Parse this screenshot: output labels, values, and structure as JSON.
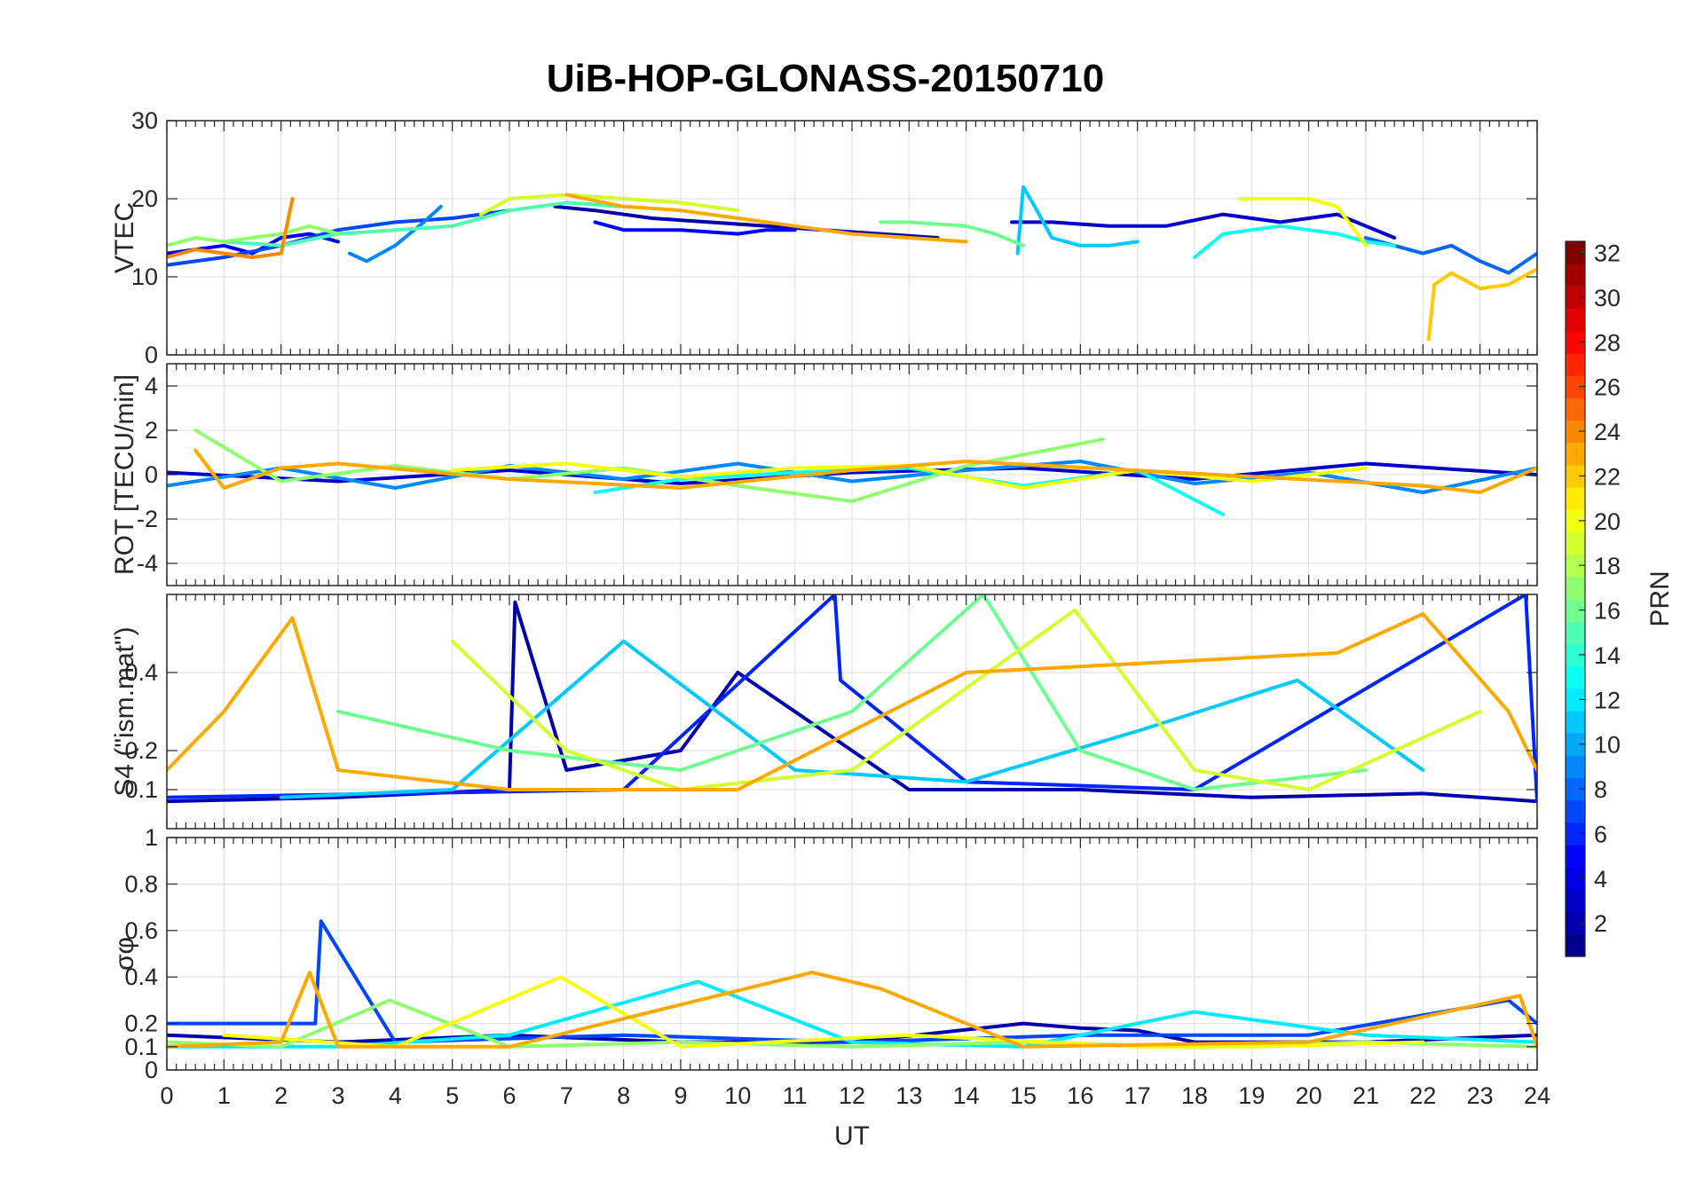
{
  "colors": {
    "axis": "#262626",
    "grid": "#e3e3e3",
    "colormap": [
      "#00008f",
      "#0000ff",
      "#0080ff",
      "#00ffff",
      "#80ff80",
      "#ffff00",
      "#ff8000",
      "#ff0000",
      "#800000"
    ]
  },
  "chart_data": [
    {
      "type": "line",
      "panel": "vtec",
      "title": "UiB-HOP-GLONASS-20150710",
      "ylabel": "VTEC",
      "xlabel": "",
      "xlim": [
        0,
        24
      ],
      "ylim": [
        0,
        30
      ],
      "yticks": [
        "0",
        "10",
        "20",
        "30"
      ],
      "grid": true,
      "series": [
        {
          "prn": 2,
          "x": [
            6.8,
            7.5,
            8.5,
            9.5,
            10.5,
            11.5,
            12.5,
            13.5
          ],
          "y": [
            19,
            18.5,
            17.5,
            17,
            16.5,
            16,
            15.5,
            15
          ]
        },
        {
          "prn": 3,
          "x": [
            14.8,
            15.5,
            16.5,
            17.5,
            18.5,
            19.5,
            20.5,
            21.5
          ],
          "y": [
            17,
            17,
            16.5,
            16.5,
            18,
            17,
            18,
            15
          ]
        },
        {
          "prn": 4,
          "x": [
            0,
            0.5,
            1,
            1.5,
            2,
            2.5,
            3
          ],
          "y": [
            13,
            13.5,
            14,
            13,
            15,
            15.5,
            14.5
          ]
        },
        {
          "prn": 5,
          "x": [
            7.5,
            8,
            9,
            10,
            10.5,
            11
          ],
          "y": [
            17,
            16,
            16,
            15.5,
            16,
            16
          ]
        },
        {
          "prn": 7,
          "x": [
            0,
            1,
            2,
            3,
            4,
            5,
            6
          ],
          "y": [
            11.5,
            12.5,
            14,
            16,
            17,
            17.5,
            18.5
          ]
        },
        {
          "prn": 8,
          "x": [
            21,
            21.5,
            22,
            22.5,
            23,
            23.5,
            24
          ],
          "y": [
            15,
            14,
            13,
            14,
            12,
            10.5,
            13
          ]
        },
        {
          "prn": 9,
          "x": [
            3.2,
            3.5,
            4,
            4.5,
            4.8
          ],
          "y": [
            13,
            12,
            14,
            17,
            19
          ]
        },
        {
          "prn": 11,
          "x": [
            14.9,
            15,
            15.2,
            15.5,
            16,
            16.5,
            17
          ],
          "y": [
            13,
            21.5,
            19,
            15,
            14,
            14,
            14.5
          ]
        },
        {
          "prn": 13,
          "x": [
            18,
            18.5,
            19,
            19.5,
            20,
            20.5,
            21,
            21.5
          ],
          "y": [
            12.5,
            15.5,
            16,
            16.5,
            16,
            15.5,
            14.5,
            14
          ]
        },
        {
          "prn": 15,
          "x": [
            1,
            2,
            3,
            4,
            5,
            6,
            7,
            8
          ],
          "y": [
            14.5,
            14,
            15.5,
            16,
            16.5,
            18.5,
            19.5,
            19
          ]
        },
        {
          "prn": 16,
          "x": [
            12.5,
            13,
            14,
            14.5,
            15
          ],
          "y": [
            17,
            17,
            16.5,
            15.5,
            14
          ]
        },
        {
          "prn": 17,
          "x": [
            0,
            0.5,
            1,
            2,
            2.5,
            3
          ],
          "y": [
            14,
            15,
            14.5,
            15.5,
            16.5,
            15.5
          ]
        },
        {
          "prn": 19,
          "x": [
            5.5,
            6,
            7,
            8,
            9,
            10
          ],
          "y": [
            18,
            20,
            20.5,
            20,
            19.5,
            18.5
          ]
        },
        {
          "prn": 20,
          "x": [
            18.8,
            19,
            19.5,
            20,
            20.5,
            21
          ],
          "y": [
            20,
            20,
            20,
            20,
            19,
            14
          ]
        },
        {
          "prn": 22,
          "x": [
            22.1,
            22.2,
            22.5,
            23,
            23.5,
            24
          ],
          "y": [
            2,
            9,
            10.5,
            8.5,
            9,
            11
          ]
        },
        {
          "prn": 23,
          "x": [
            7,
            8,
            9,
            10,
            11,
            12,
            13,
            14
          ],
          "y": [
            20.5,
            19,
            18.5,
            17.5,
            16.5,
            15.5,
            15,
            14.5
          ]
        },
        {
          "prn": 24,
          "x": [
            0,
            0.5,
            1,
            1.5,
            2,
            2.2
          ],
          "y": [
            12.5,
            13.5,
            13,
            12.5,
            13,
            20
          ]
        }
      ]
    },
    {
      "type": "line",
      "panel": "rot",
      "ylabel": "ROT [TECU/min]",
      "xlim": [
        0,
        24
      ],
      "ylim": [
        -5,
        5
      ],
      "yticks": [
        "-4",
        "-2",
        "0",
        "2",
        "4"
      ],
      "grid": true,
      "series": [
        {
          "prn": 3,
          "x": [
            0,
            3,
            6,
            9,
            12,
            15,
            18,
            21,
            24
          ],
          "y": [
            0.1,
            -0.3,
            0.2,
            -0.4,
            0.1,
            0.3,
            -0.2,
            0.5,
            0
          ]
        },
        {
          "prn": 9,
          "x": [
            0,
            2,
            4,
            6,
            8,
            10,
            12,
            14,
            16,
            18,
            20,
            22,
            24
          ],
          "y": [
            -0.5,
            0.3,
            -0.6,
            0.4,
            -0.2,
            0.5,
            -0.3,
            0.2,
            0.6,
            -0.4,
            0.1,
            -0.8,
            0.3
          ]
        },
        {
          "prn": 13,
          "x": [
            7.5,
            9,
            11,
            13,
            15,
            17,
            18.5
          ],
          "y": [
            -0.8,
            -0.2,
            0.1,
            0.3,
            -0.5,
            0.2,
            -1.8
          ]
        },
        {
          "prn": 17,
          "x": [
            0.5,
            2,
            4,
            6,
            8,
            10,
            12,
            14,
            16.4
          ],
          "y": [
            2,
            -0.3,
            0.4,
            -0.2,
            0.3,
            -0.5,
            -1.2,
            0.4,
            1.6
          ]
        },
        {
          "prn": 20,
          "x": [
            5,
            7,
            9,
            11,
            13,
            15,
            17,
            19,
            21
          ],
          "y": [
            0.2,
            0.5,
            -0.1,
            0.3,
            0.4,
            -0.6,
            0.2,
            -0.3,
            0.3
          ]
        },
        {
          "prn": 23,
          "x": [
            0.5,
            1,
            2,
            3,
            6,
            9,
            12,
            14,
            22,
            23,
            24
          ],
          "y": [
            1.1,
            -0.6,
            0.3,
            0.5,
            -0.2,
            -0.6,
            0.2,
            0.6,
            -0.5,
            -0.8,
            0.3
          ]
        }
      ]
    },
    {
      "type": "line",
      "panel": "s4",
      "ylabel": "S4 (\"ism.mat\")",
      "xlim": [
        0,
        24
      ],
      "ylim": [
        0,
        0.6
      ],
      "yticks": [
        "0.1",
        "0.2",
        "0.4"
      ],
      "grid": true,
      "series": [
        {
          "prn": 2,
          "x": [
            0,
            3,
            6,
            6.1,
            7,
            9,
            10,
            13,
            16,
            19,
            22,
            24
          ],
          "y": [
            0.07,
            0.08,
            0.1,
            0.58,
            0.15,
            0.2,
            0.4,
            0.1,
            0.1,
            0.08,
            0.09,
            0.07
          ]
        },
        {
          "prn": 6,
          "x": [
            0,
            4,
            8,
            11.7,
            11.8,
            14,
            18,
            23.8,
            24
          ],
          "y": [
            0.08,
            0.09,
            0.1,
            0.6,
            0.38,
            0.12,
            0.1,
            0.6,
            0.07
          ]
        },
        {
          "prn": 11,
          "x": [
            2,
            5,
            8,
            11,
            14,
            17,
            19.8,
            22
          ],
          "y": [
            0.08,
            0.1,
            0.48,
            0.15,
            0.12,
            0.25,
            0.38,
            0.15
          ]
        },
        {
          "prn": 16,
          "x": [
            3,
            6,
            9,
            12,
            14.3,
            16,
            18,
            21
          ],
          "y": [
            0.3,
            0.2,
            0.15,
            0.3,
            0.6,
            0.2,
            0.1,
            0.15
          ]
        },
        {
          "prn": 19,
          "x": [
            5,
            7,
            9,
            12,
            15.9,
            18,
            20,
            23
          ],
          "y": [
            0.48,
            0.2,
            0.1,
            0.15,
            0.56,
            0.15,
            0.1,
            0.3
          ]
        },
        {
          "prn": 23,
          "x": [
            0,
            1,
            2.2,
            3,
            6,
            10,
            14,
            20.5,
            22,
            23.5,
            24
          ],
          "y": [
            0.15,
            0.3,
            0.54,
            0.15,
            0.1,
            0.1,
            0.4,
            0.45,
            0.55,
            0.3,
            0.15
          ]
        }
      ]
    },
    {
      "type": "line",
      "panel": "sigma_phi",
      "ylabel": "σφ",
      "xlabel": "UT",
      "xlim": [
        0,
        24
      ],
      "ylim": [
        0,
        1
      ],
      "xticks": [
        "0",
        "1",
        "2",
        "3",
        "4",
        "5",
        "6",
        "7",
        "8",
        "9",
        "10",
        "11",
        "12",
        "13",
        "14",
        "15",
        "16",
        "17",
        "18",
        "19",
        "20",
        "21",
        "22",
        "23",
        "24"
      ],
      "yticks": [
        "0",
        "0.1",
        "0.2",
        "0.4",
        "0.6",
        "0.8",
        "1"
      ],
      "grid": true,
      "series": [
        {
          "prn": 2,
          "x": [
            0,
            3,
            6,
            9,
            12,
            15,
            16,
            17,
            18,
            21,
            24
          ],
          "y": [
            0.15,
            0.12,
            0.15,
            0.12,
            0.12,
            0.2,
            0.18,
            0.17,
            0.12,
            0.12,
            0.15
          ]
        },
        {
          "prn": 7,
          "x": [
            0,
            2.6,
            2.7,
            4,
            8,
            12,
            16,
            20,
            23.5,
            24
          ],
          "y": [
            0.2,
            0.2,
            0.64,
            0.12,
            0.15,
            0.12,
            0.15,
            0.15,
            0.3,
            0.2
          ]
        },
        {
          "prn": 12,
          "x": [
            0,
            3,
            6,
            9.3,
            12,
            15,
            18,
            21,
            24
          ],
          "y": [
            0.1,
            0.1,
            0.15,
            0.38,
            0.12,
            0.1,
            0.25,
            0.15,
            0.12
          ]
        },
        {
          "prn": 17,
          "x": [
            0,
            2,
            3.9,
            6,
            9,
            12,
            15,
            18,
            21,
            24
          ],
          "y": [
            0.12,
            0.1,
            0.3,
            0.1,
            0.12,
            0.1,
            0.12,
            0.1,
            0.12,
            0.1
          ]
        },
        {
          "prn": 20,
          "x": [
            1,
            4,
            6.9,
            9,
            13,
            17,
            19,
            22
          ],
          "y": [
            0.15,
            0.1,
            0.4,
            0.1,
            0.15,
            0.1,
            0.1,
            0.12
          ]
        },
        {
          "prn": 23,
          "x": [
            0,
            2,
            2.5,
            3,
            6,
            11.3,
            12.5,
            15,
            20,
            23.7,
            24
          ],
          "y": [
            0.1,
            0.12,
            0.42,
            0.1,
            0.1,
            0.42,
            0.35,
            0.1,
            0.12,
            0.32,
            0.1
          ]
        }
      ]
    }
  ],
  "colorbar": {
    "label": "PRN",
    "min": 1,
    "max": 32,
    "ticks": [
      "2",
      "4",
      "6",
      "8",
      "10",
      "12",
      "14",
      "16",
      "18",
      "20",
      "22",
      "24",
      "26",
      "28",
      "30",
      "32"
    ]
  }
}
